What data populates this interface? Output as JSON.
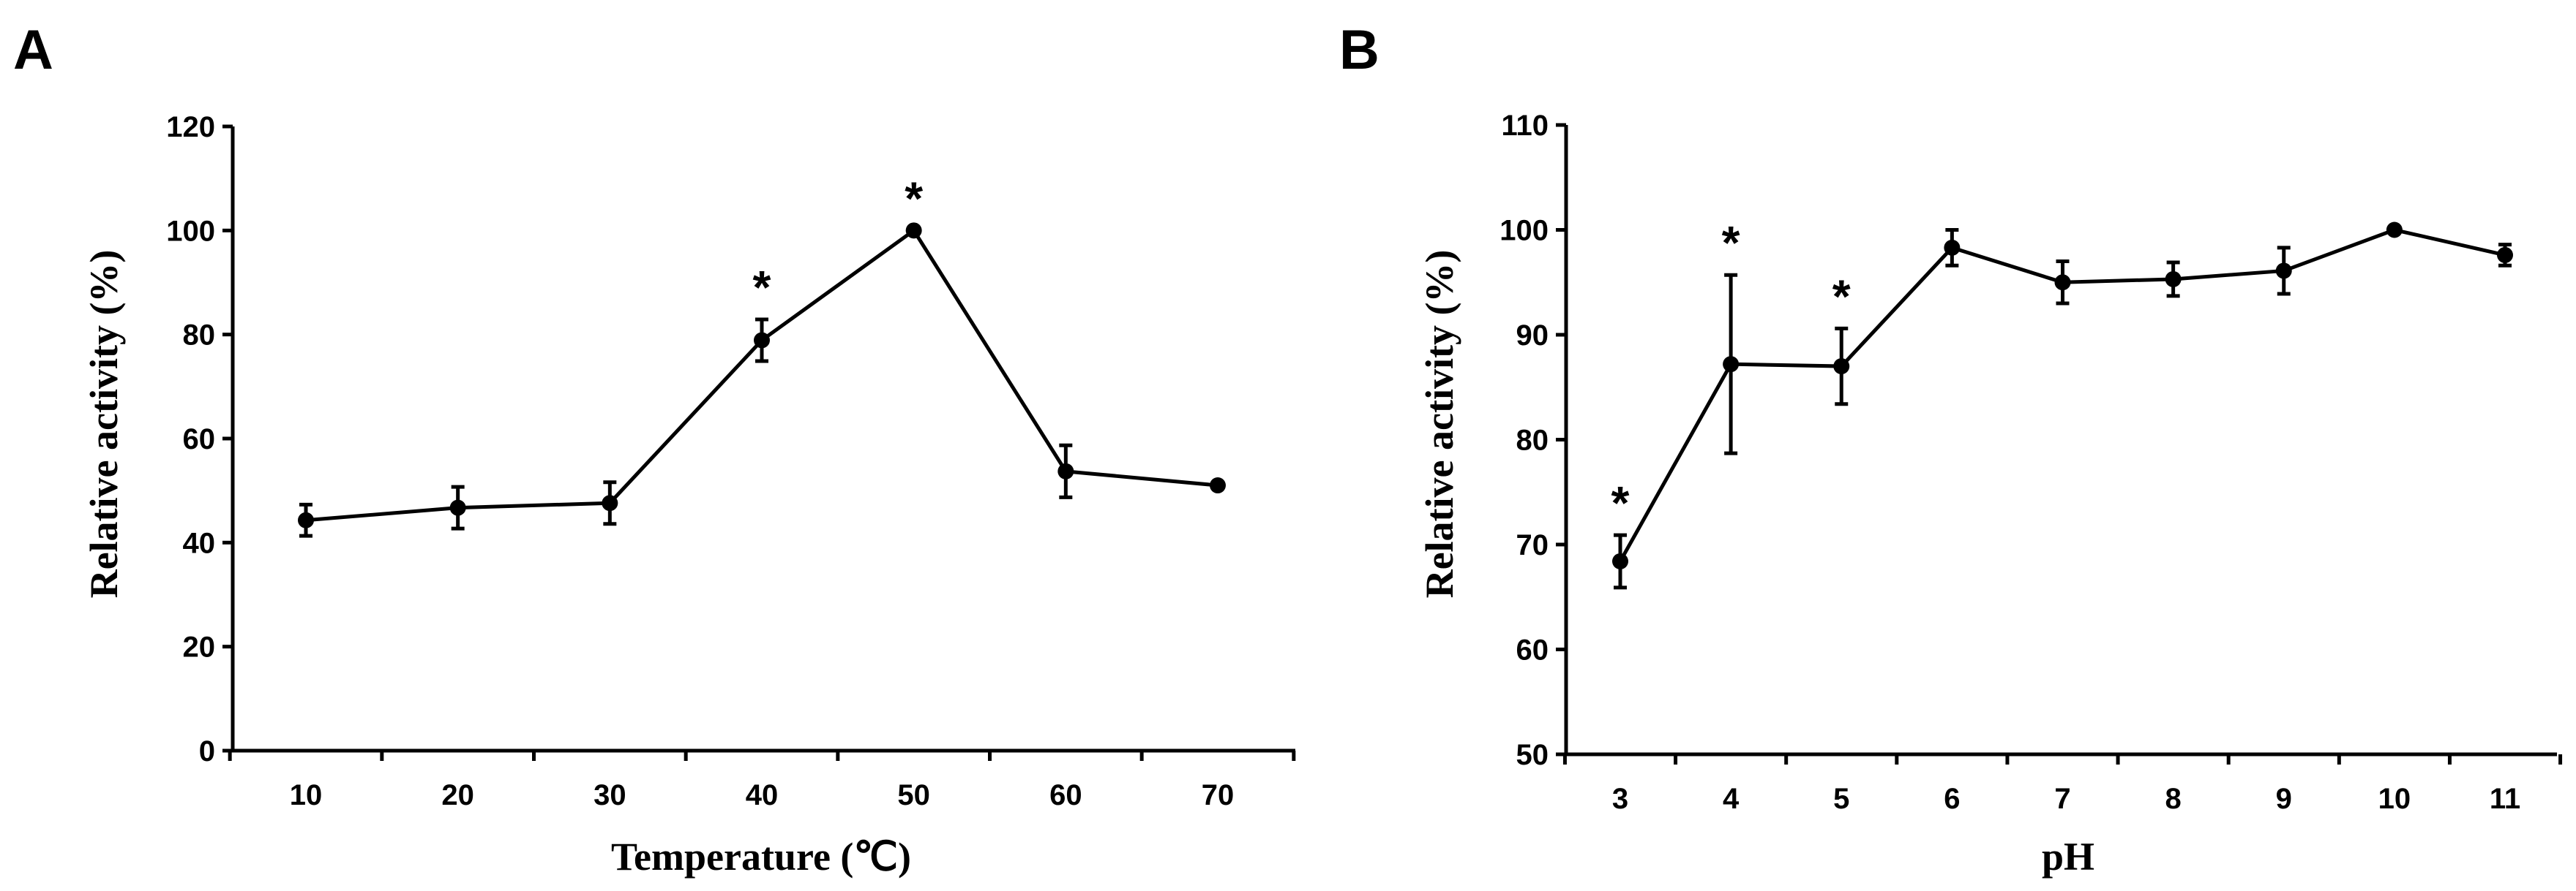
{
  "chart_data": [
    {
      "panel": "A",
      "type": "line",
      "xlabel": "Temperature (℃)",
      "ylabel": "Relative activity (%)",
      "categories": [
        "10",
        "20",
        "30",
        "40",
        "50",
        "60",
        "70"
      ],
      "values": [
        44.3,
        46.7,
        47.6,
        78.9,
        100,
        53.7,
        51.0
      ],
      "errors": [
        3,
        4,
        4,
        4,
        0,
        5,
        0
      ],
      "significant": [
        false,
        false,
        false,
        true,
        true,
        false,
        false
      ],
      "annotation": "*",
      "ylim": [
        0,
        120
      ],
      "yticks": [
        "0",
        "20",
        "40",
        "60",
        "80",
        "100",
        "120"
      ]
    },
    {
      "panel": "B",
      "type": "line",
      "xlabel": "pH",
      "ylabel": "Relative activity (%)",
      "categories": [
        "3",
        "4",
        "5",
        "6",
        "7",
        "8",
        "9",
        "10",
        "11"
      ],
      "values": [
        68.4,
        87.2,
        87.0,
        98.3,
        95.0,
        95.3,
        96.1,
        100,
        97.6
      ],
      "errors": [
        2.5,
        8.5,
        3.6,
        1.7,
        2.0,
        1.6,
        2.2,
        0,
        1.0
      ],
      "significant": [
        true,
        true,
        true,
        false,
        false,
        false,
        false,
        false,
        false
      ],
      "annotation": "*",
      "ylim": [
        50,
        110
      ],
      "yticks": [
        "50",
        "60",
        "70",
        "80",
        "90",
        "100",
        "110"
      ]
    }
  ]
}
